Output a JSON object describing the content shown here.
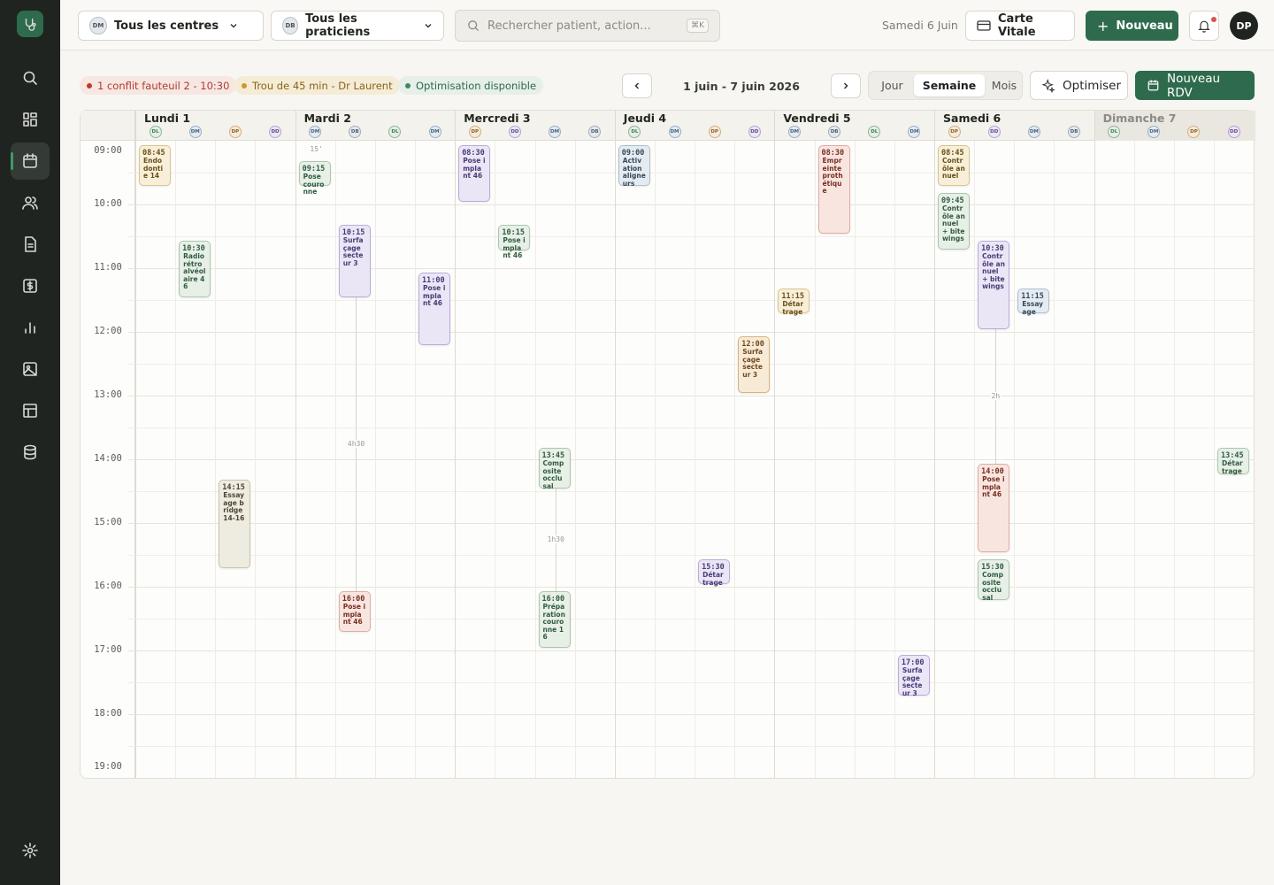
{
  "topbar": {
    "centre_filter": {
      "avatar": "DM",
      "label": "Tous les centres"
    },
    "praticien_filter": {
      "avatar": "DB",
      "label": "Tous les praticiens"
    },
    "search": {
      "placeholder": "Rechercher patient, action...",
      "shortcut": "⌘K"
    },
    "date": "Samedi 6 Juin",
    "carte_vitale": "Carte Vitale",
    "new_button": "Nouveau",
    "user": "DP"
  },
  "toolbar": {
    "alerts": [
      "1 conflit fauteuil 2 - 10:30",
      "Trou de 45 min - Dr Laurent",
      "Optimisation disponible"
    ],
    "range": "1 juin - 7 juin 2026",
    "views": [
      "Jour",
      "Semaine",
      "Mois"
    ],
    "optimize": "Optimiser",
    "new_appointment": "Nouveau RDV"
  },
  "calendar": {
    "hours": [
      "09:00",
      "10:00",
      "11:00",
      "12:00",
      "13:00",
      "14:00",
      "15:00",
      "16:00",
      "17:00",
      "18:00",
      "19:00"
    ],
    "days": [
      {
        "name": "Lundi 1",
        "practitioners": [
          {
            "initials": "DL",
            "appointments": [
              {
                "time": "08:45",
                "label": "Endodontie 14"
              }
            ]
          },
          {
            "initials": "DM",
            "appointments": [
              {
                "time": "10:30",
                "label": "Radio rétro alvéolaire 46"
              }
            ]
          },
          {
            "initials": "DP",
            "appointments": [
              {
                "time": "14:15",
                "label": "Essayage bridge 14-16"
              }
            ]
          },
          {
            "initials": "DD",
            "appointments": []
          }
        ]
      },
      {
        "name": "Mardi 2",
        "practitioners": [
          {
            "initials": "DM",
            "appointments": [
              {
                "time": "09:15",
                "label": "Pose couronne"
              }
            ],
            "gaps": [
              "15'"
            ]
          },
          {
            "initials": "DB",
            "appointments": [
              {
                "time": "10:15",
                "label": "Surfaçage secteur 3"
              },
              {
                "time": "16:00",
                "label": "Pose implant 46"
              }
            ],
            "gaps": [
              "4h30"
            ]
          },
          {
            "initials": "DL",
            "appointments": []
          },
          {
            "initials": "DM",
            "appointments": [
              {
                "time": "11:00",
                "label": "Pose implant 46"
              }
            ]
          }
        ]
      },
      {
        "name": "Mercredi 3",
        "practitioners": [
          {
            "initials": "DP",
            "appointments": [
              {
                "time": "08:30",
                "label": "Pose implant 46"
              }
            ]
          },
          {
            "initials": "DD",
            "appointments": [
              {
                "time": "10:15",
                "label": "Pose implant 46"
              }
            ]
          },
          {
            "initials": "DM",
            "appointments": [
              {
                "time": "13:45",
                "label": "Composite occlusal"
              },
              {
                "time": "16:00",
                "label": "Préparation couronne 16"
              }
            ],
            "gaps": [
              "1h30"
            ]
          },
          {
            "initials": "DB",
            "appointments": []
          }
        ]
      },
      {
        "name": "Jeudi 4",
        "practitioners": [
          {
            "initials": "DL",
            "appointments": [
              {
                "time": "09:00",
                "label": "Activation aligneurs"
              }
            ]
          },
          {
            "initials": "DM",
            "appointments": []
          },
          {
            "initials": "DP",
            "appointments": [
              {
                "time": "15:30",
                "label": "Détartrage"
              }
            ]
          },
          {
            "initials": "DD",
            "appointments": [
              {
                "time": "12:00",
                "label": "Surfaçage secteur 3"
              }
            ]
          }
        ]
      },
      {
        "name": "Vendredi 5",
        "practitioners": [
          {
            "initials": "DM",
            "appointments": [
              {
                "time": "11:15",
                "label": "Détartrage"
              }
            ]
          },
          {
            "initials": "DB",
            "appointments": [
              {
                "time": "08:30",
                "label": "Empreinte prothétique"
              }
            ]
          },
          {
            "initials": "DL",
            "appointments": []
          },
          {
            "initials": "DM",
            "appointments": [
              {
                "time": "17:00",
                "label": "Surfaçage secteur 3"
              }
            ]
          }
        ]
      },
      {
        "name": "Samedi 6",
        "practitioners": [
          {
            "initials": "DP",
            "appointments": [
              {
                "time": "08:45",
                "label": "Contrôle annuel"
              },
              {
                "time": "09:45",
                "label": "Contrôle annuel + bitewings"
              }
            ]
          },
          {
            "initials": "DD",
            "appointments": [
              {
                "time": "10:30",
                "label": "Contrôle annuel + bitewings"
              },
              {
                "time": "14:00",
                "label": "Pose implant 46"
              },
              {
                "time": "15:30",
                "label": "Composite occlusal"
              }
            ],
            "gaps": [
              "2h"
            ]
          },
          {
            "initials": "DM",
            "appointments": [
              {
                "time": "11:15",
                "label": "Essayage"
              }
            ]
          },
          {
            "initials": "DB",
            "appointments": []
          }
        ]
      },
      {
        "name": "Dimanche 7",
        "practitioners": [
          {
            "initials": "DL",
            "appointments": []
          },
          {
            "initials": "DM",
            "appointments": []
          },
          {
            "initials": "DP",
            "appointments": []
          },
          {
            "initials": "DD",
            "appointments": [
              {
                "time": "13:45",
                "label": "Détartrage"
              }
            ]
          }
        ]
      }
    ]
  }
}
